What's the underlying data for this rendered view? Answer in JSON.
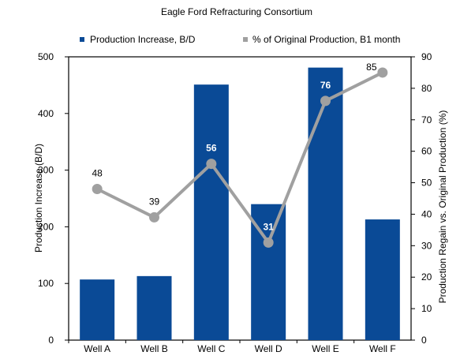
{
  "chart_data": {
    "type": "bar",
    "title": "Eagle Ford Refracturing Consortium",
    "categories": [
      "Well A",
      "Well B",
      "Well C",
      "Well D",
      "Well E",
      "Well F"
    ],
    "series": [
      {
        "name": "Production Increase, B/D",
        "type": "bar",
        "axis": "left",
        "color": "#0a4a96",
        "values": [
          107,
          113,
          451,
          240,
          481,
          213
        ]
      },
      {
        "name": "% of Original Production, B1 month",
        "type": "line",
        "axis": "right",
        "color": "#a0a0a0",
        "values": [
          48,
          39,
          56,
          31,
          76,
          85
        ],
        "labels": [
          "48",
          "39",
          "56",
          "31",
          "76",
          "85"
        ]
      }
    ],
    "ylabel": "Production Increase (B/D)",
    "y2label": "Production Regain vs. Original Production (%)",
    "ylim": [
      0,
      500
    ],
    "yticks": [
      0,
      100,
      200,
      300,
      400,
      500
    ],
    "y2lim": [
      0,
      90
    ],
    "y2ticks": [
      0,
      10,
      20,
      30,
      40,
      50,
      60,
      70,
      80,
      90
    ],
    "grid": false,
    "legend": "top"
  }
}
